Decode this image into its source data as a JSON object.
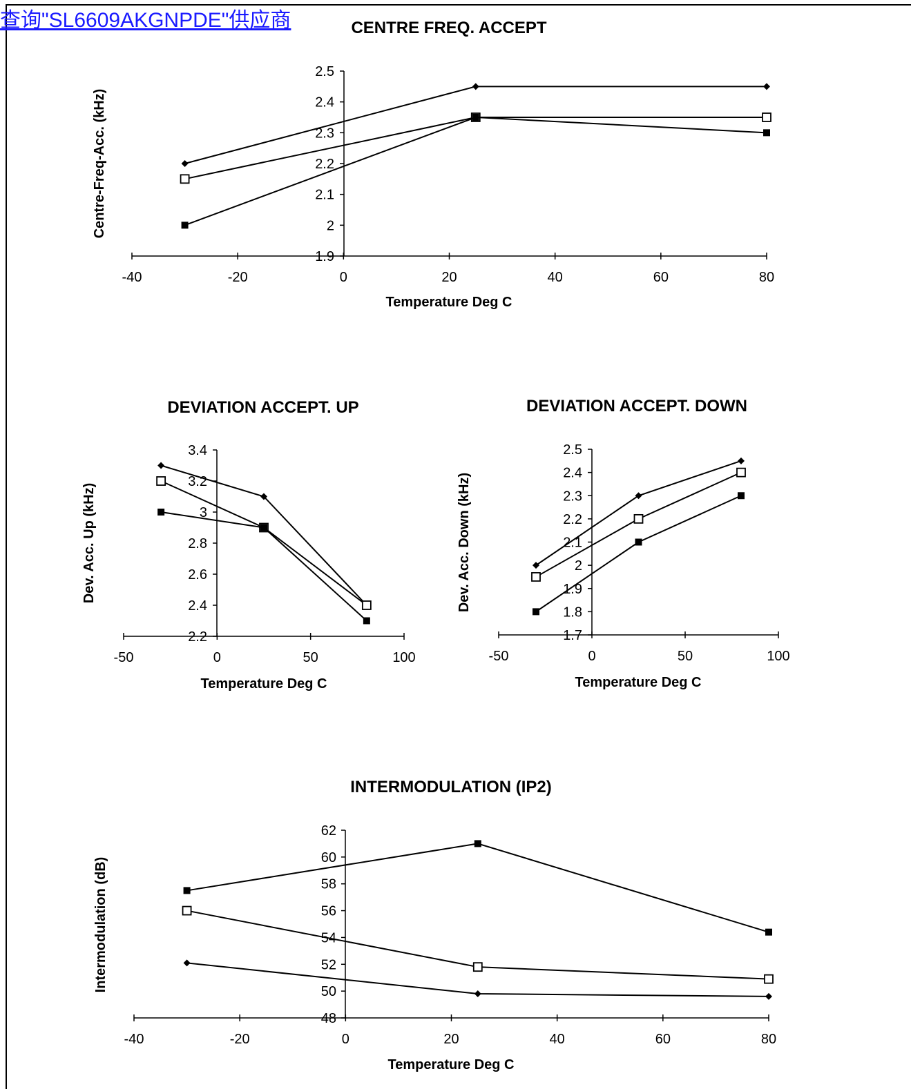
{
  "header": {
    "link_text": "查询\"SL6609AKGNPDE\"供应商"
  },
  "chart_data": [
    {
      "id": "centre-freq",
      "type": "line",
      "title": "CENTRE FREQ. ACCEPT",
      "xlabel": "Temperature Deg C",
      "ylabel": "Centre-Freq-Acc. (kHz)",
      "xlim": [
        -40,
        80
      ],
      "ylim": [
        1.9,
        2.5
      ],
      "xticks": [
        -40,
        -20,
        0,
        20,
        40,
        60,
        80
      ],
      "yticks": [
        1.9,
        2.0,
        2.1,
        2.2,
        2.3,
        2.4,
        2.5
      ],
      "ytick_labels": [
        "1.9",
        "2",
        "2.1",
        "2.2",
        "2.3",
        "2.4",
        "2.5"
      ],
      "x": [
        -30,
        25,
        80
      ],
      "series": [
        {
          "marker": "diamond",
          "values": [
            2.2,
            2.45,
            2.45
          ]
        },
        {
          "marker": "open-square",
          "values": [
            2.15,
            2.35,
            2.35
          ]
        },
        {
          "marker": "filled-square",
          "values": [
            2.0,
            2.35,
            2.3
          ]
        }
      ]
    },
    {
      "id": "deviation-up",
      "type": "line",
      "title": "DEVIATION  ACCEPT. UP",
      "xlabel": "Temperature Deg C",
      "ylabel": "Dev. Acc. Up (kHz)",
      "xlim": [
        -50,
        100
      ],
      "ylim": [
        2.2,
        3.4
      ],
      "xticks": [
        -50,
        0,
        50,
        100
      ],
      "yticks": [
        2.2,
        2.4,
        2.6,
        2.8,
        3.0,
        3.2,
        3.4
      ],
      "ytick_labels": [
        "2.2",
        "2.4",
        "2.6",
        "2.8",
        "3",
        "3.2",
        "3.4"
      ],
      "x": [
        -30,
        25,
        80
      ],
      "series": [
        {
          "marker": "diamond",
          "values": [
            3.3,
            3.1,
            2.4
          ]
        },
        {
          "marker": "open-square",
          "values": [
            3.2,
            2.9,
            2.4
          ]
        },
        {
          "marker": "filled-square",
          "values": [
            3.0,
            2.9,
            2.3
          ]
        }
      ]
    },
    {
      "id": "deviation-down",
      "type": "line",
      "title": "DEVIATION ACCEPT. DOWN",
      "xlabel": "Temperature Deg C",
      "ylabel": "Dev. Acc. Down (kHz)",
      "xlim": [
        -50,
        100
      ],
      "ylim": [
        1.7,
        2.5
      ],
      "xticks": [
        -50,
        0,
        50,
        100
      ],
      "yticks": [
        1.7,
        1.8,
        1.9,
        2.0,
        2.1,
        2.2,
        2.3,
        2.4,
        2.5
      ],
      "ytick_labels": [
        "1.7",
        "1.8",
        "1.9",
        "2",
        "2.1",
        "2.2",
        "2.3",
        "2.4",
        "2.5"
      ],
      "x": [
        -30,
        25,
        80
      ],
      "series": [
        {
          "marker": "diamond",
          "values": [
            2.0,
            2.3,
            2.45
          ]
        },
        {
          "marker": "open-square",
          "values": [
            1.95,
            2.2,
            2.4
          ]
        },
        {
          "marker": "filled-square",
          "values": [
            1.8,
            2.1,
            2.3
          ]
        }
      ]
    },
    {
      "id": "intermodulation",
      "type": "line",
      "title": "INTERMODULATION (IP2)",
      "xlabel": "Temperature Deg C",
      "ylabel": "Intermodulation (dB)",
      "xlim": [
        -40,
        80
      ],
      "ylim": [
        48,
        62
      ],
      "xticks": [
        -40,
        -20,
        0,
        20,
        40,
        60,
        80
      ],
      "yticks": [
        48,
        50,
        52,
        54,
        56,
        58,
        60,
        62
      ],
      "ytick_labels": [
        "48",
        "50",
        "52",
        "54",
        "56",
        "58",
        "60",
        "62"
      ],
      "x": [
        -30,
        25,
        80
      ],
      "series": [
        {
          "marker": "diamond",
          "values": [
            52.1,
            49.8,
            49.6
          ]
        },
        {
          "marker": "open-square",
          "values": [
            56.0,
            51.8,
            50.9
          ]
        },
        {
          "marker": "filled-square",
          "values": [
            57.5,
            61.0,
            54.4
          ]
        }
      ]
    }
  ]
}
